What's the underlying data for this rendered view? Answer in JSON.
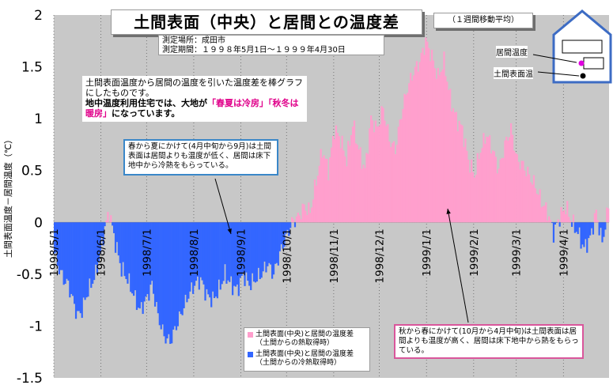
{
  "chart_data": {
    "type": "area",
    "title": "土間表面（中央）と居間との温度差",
    "subtitle": "（１週間移動平均）",
    "ylabel": "土間表面温度－居間温度（℃）",
    "ylim": [
      -1.5,
      2
    ],
    "yticks": [
      "2",
      "1.5",
      "1",
      "0.5",
      "0",
      "-0.5",
      "-1",
      "-1.5"
    ],
    "ytick_values": [
      2,
      1.5,
      1,
      0.5,
      0,
      -0.5,
      -1,
      -1.5
    ],
    "x_start": "1998/5/1",
    "x_end": "1999/4/30",
    "x_month_ticks": [
      "1998/5/1",
      "1998/6/1",
      "1998/7/1",
      "1998/8/1",
      "1998/9/1",
      "1998/10/1",
      "1998/11/1",
      "1998/12/1",
      "1999/1/1",
      "1999/2/1",
      "1999/3/1",
      "1999/4/1"
    ],
    "x_month_ticks_day": [
      0,
      31,
      61,
      92,
      123,
      153,
      184,
      214,
      245,
      276,
      304,
      335
    ],
    "grid": "vertical-dotted-monthly",
    "series": [
      {
        "name": "土間表面(中央)と居間の温度差(土間からの熱取得時)",
        "color": "#ff9fcd",
        "sign": "positive"
      },
      {
        "name": "土間表面(中央)と居間の温度差(土間からの冷熱取得時)",
        "color": "#3366ff",
        "sign": "negative"
      }
    ],
    "anchor_days": [
      0,
      3,
      6,
      9,
      12,
      15,
      18,
      21,
      24,
      27,
      30,
      33,
      36,
      40,
      44,
      48,
      52,
      56,
      60,
      64,
      68,
      72,
      76,
      80,
      84,
      88,
      92,
      96,
      100,
      104,
      108,
      112,
      116,
      120,
      124,
      128,
      132,
      136,
      140,
      144,
      148,
      152,
      156,
      160,
      164,
      168,
      172,
      176,
      180,
      184,
      188,
      192,
      196,
      200,
      204,
      208,
      212,
      216,
      220,
      224,
      228,
      232,
      236,
      240,
      244,
      248,
      252,
      256,
      260,
      264,
      268,
      272,
      276,
      280,
      284,
      288,
      292,
      296,
      300,
      304,
      308,
      312,
      316,
      320,
      324,
      328,
      332,
      336,
      340,
      344,
      348,
      352,
      356,
      360,
      364
    ],
    "anchor_values": [
      -0.3,
      -0.45,
      -0.55,
      -0.6,
      -0.75,
      -0.9,
      -0.85,
      -0.7,
      -0.6,
      -0.5,
      -0.3,
      -0.05,
      0.1,
      -0.2,
      -0.45,
      -0.55,
      -0.7,
      -0.85,
      -0.75,
      -0.6,
      -0.9,
      -1.1,
      -1.15,
      -1.0,
      -0.85,
      -0.7,
      -0.6,
      -0.55,
      -0.7,
      -0.75,
      -0.65,
      -0.5,
      -0.6,
      -0.65,
      -0.5,
      -0.6,
      -0.55,
      -0.5,
      -0.4,
      -0.5,
      -0.3,
      -0.15,
      0.0,
      0.05,
      0.15,
      0.1,
      0.4,
      0.7,
      0.5,
      0.9,
      0.8,
      0.6,
      0.95,
      0.7,
      0.5,
      1.0,
      0.9,
      1.1,
      0.8,
      0.7,
      1.05,
      1.3,
      1.45,
      1.55,
      1.75,
      1.6,
      1.4,
      1.55,
      1.2,
      1.0,
      0.9,
      0.6,
      0.45,
      0.7,
      0.85,
      0.7,
      0.5,
      0.75,
      0.9,
      0.6,
      0.55,
      0.45,
      0.35,
      0.2,
      0.1,
      -0.1,
      0.05,
      0.15,
      0.0,
      -0.1,
      -0.25,
      -0.15,
      0.1,
      -0.2,
      0.15
    ]
  },
  "annotations": {
    "location": "測定場所：成田市",
    "period": "測定期間：１９９８年5月1日～１９９９年4月30日",
    "desc_line1": "土間表面温度から居間の温度を引いた温度差を棒グラフにしたものです。",
    "desc_line2_prefix": "地中温度利用住宅では、大地が",
    "desc_summer": "「春夏は冷房」",
    "desc_winter": "「秋冬は暖房」",
    "desc_line2_suffix": "になっています。",
    "note_spring": "春から夏にかけて(4月中旬から9月)は土間表面は居間よりも温度が低く、居間は床下地中から冷熱をもらっている。",
    "note_autumn": "秋から春にかけて(10月から4月中旬)は土間表面は居間よりも温度が高く、居間は床下地中から熱をもらっている。"
  },
  "legend": {
    "positive_line1": "土間表面(中央)と居間の温度差",
    "positive_line2": "（土間からの熱取得時）",
    "negative_line1": "土間表面(中央)と居間の温度差",
    "negative_line2": "（土間からの冷熱取得時）"
  },
  "house": {
    "living_temp_label": "居間温度",
    "floor_temp_label": "土間表面温"
  }
}
